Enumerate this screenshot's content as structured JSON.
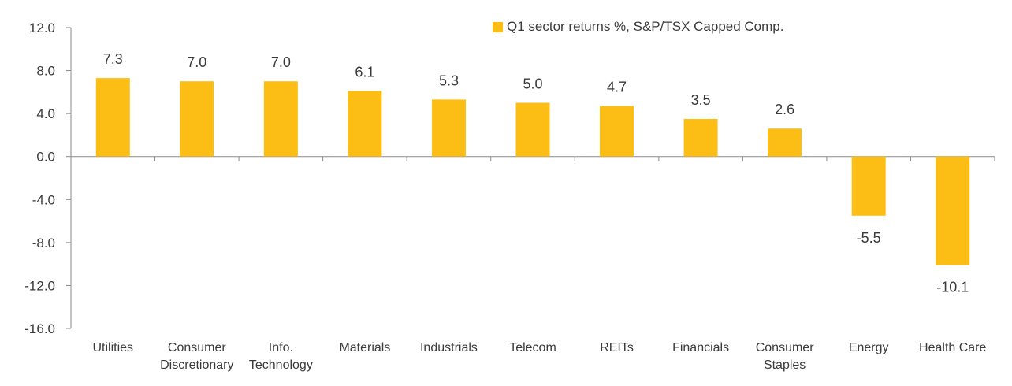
{
  "chart_data": {
    "type": "bar",
    "title": "",
    "xlabel": "",
    "ylabel": "",
    "ylim": [
      -16,
      12
    ],
    "yticks": [
      "12.0",
      "8.0",
      "4.0",
      "0.0",
      "-4.0",
      "-8.0",
      "-12.0",
      "-16.0"
    ],
    "ytick_values": [
      12,
      8,
      4,
      0,
      -4,
      -8,
      -12,
      -16
    ],
    "grid": false,
    "legend_position": "top-right",
    "bar_color": "#FCBD14",
    "categories": [
      [
        "Utilities"
      ],
      [
        "Consumer",
        "Discretionary"
      ],
      [
        "Info.",
        "Technology"
      ],
      [
        "Materials"
      ],
      [
        "Industrials"
      ],
      [
        "Telecom"
      ],
      [
        "REITs"
      ],
      [
        "Financials"
      ],
      [
        "Consumer",
        "Staples"
      ],
      [
        "Energy"
      ],
      [
        "Health Care"
      ]
    ],
    "series": [
      {
        "name": "Q1 sector returns %, S&P/TSX Capped Comp.",
        "values": [
          7.3,
          7.0,
          7.0,
          6.1,
          5.3,
          5.0,
          4.7,
          3.5,
          2.6,
          -5.5,
          -10.1
        ],
        "labels": [
          "7.3",
          "7.0",
          "7.0",
          "6.1",
          "5.3",
          "5.0",
          "4.7",
          "3.5",
          "2.6",
          "-5.5",
          "-10.1"
        ]
      }
    ]
  }
}
